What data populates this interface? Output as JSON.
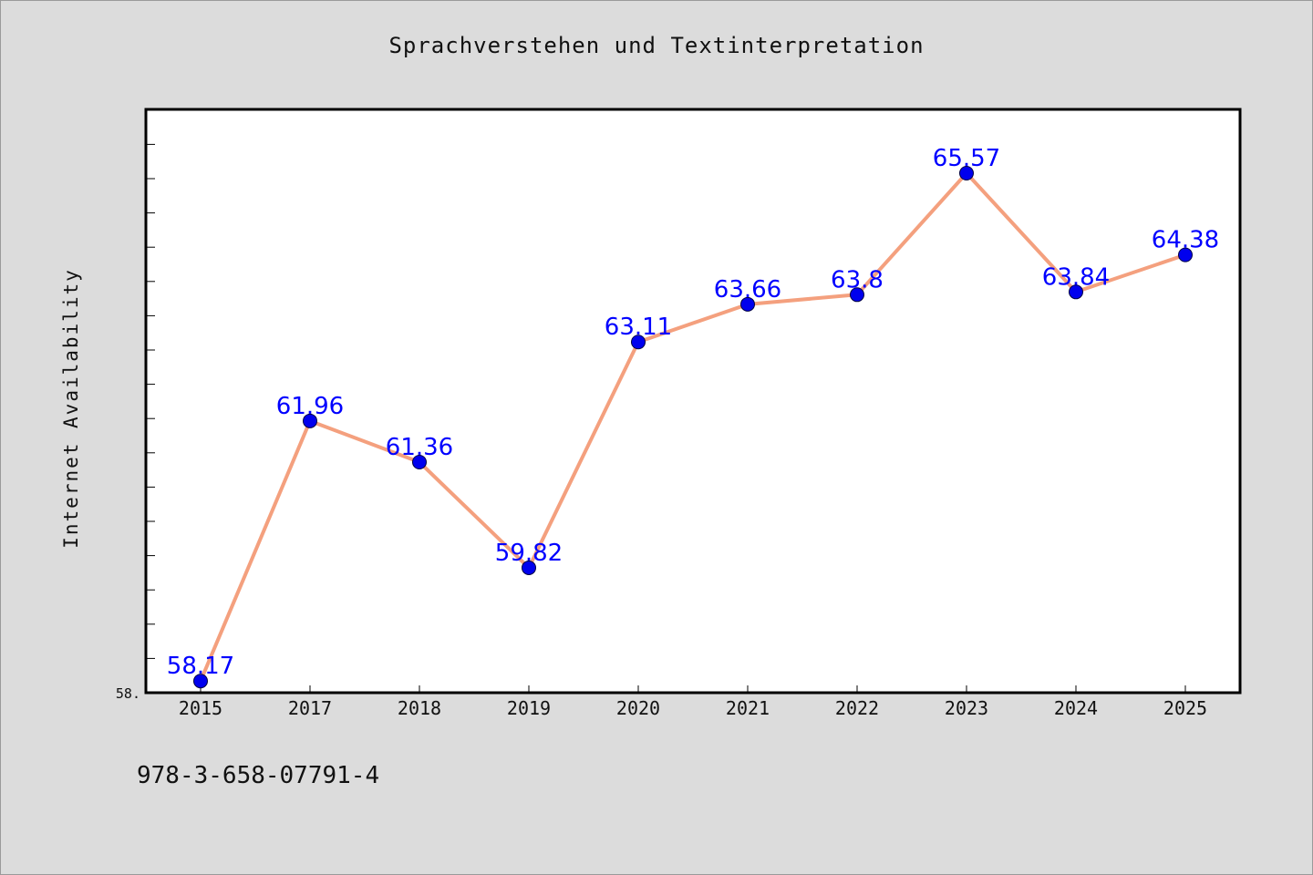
{
  "chart_data": {
    "type": "line",
    "title": "Sprachverstehen und Textinterpretation",
    "ylabel": "Internet Availability",
    "xlabel": "",
    "categories": [
      "2015",
      "2017",
      "2018",
      "2019",
      "2020",
      "2021",
      "2022",
      "2023",
      "2024",
      "2025"
    ],
    "series": [
      {
        "values": [
          58.17,
          61.96,
          61.36,
          59.82,
          63.11,
          63.66,
          63.8,
          65.57,
          63.84,
          64.38
        ],
        "labels": [
          "58.17",
          "61.96",
          "61.36",
          "59.82",
          "63.11",
          "63.66",
          "63.8",
          "65.57",
          "63.84",
          "64.38"
        ],
        "line_color": "#f4a07e",
        "marker_color": "#0000ee",
        "label_color": "#0000ff"
      }
    ],
    "ylim": [
      58.0,
      66.5
    ],
    "y_tick_label": "58.",
    "grid": false,
    "legend": "none"
  },
  "footer": {
    "isbn": "978-3-658-07791-4"
  },
  "colors": {
    "background": "#dcdcdc",
    "plot_background": "#ffffff",
    "axes": "#000000"
  }
}
